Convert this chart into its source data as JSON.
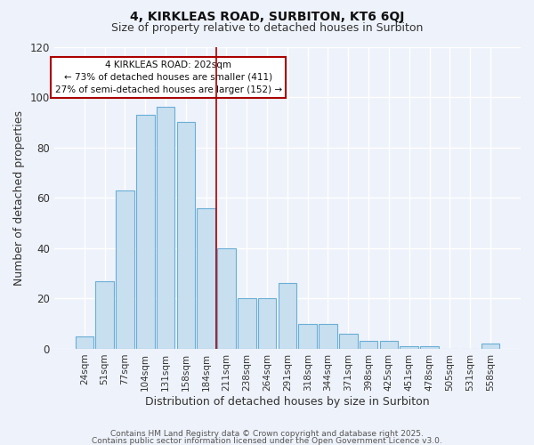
{
  "title_line1": "4, KIRKLEAS ROAD, SURBITON, KT6 6QJ",
  "title_line2": "Size of property relative to detached houses in Surbiton",
  "xlabel": "Distribution of detached houses by size in Surbiton",
  "ylabel": "Number of detached properties",
  "bar_labels": [
    "24sqm",
    "51sqm",
    "77sqm",
    "104sqm",
    "131sqm",
    "158sqm",
    "184sqm",
    "211sqm",
    "238sqm",
    "264sqm",
    "291sqm",
    "318sqm",
    "344sqm",
    "371sqm",
    "398sqm",
    "425sqm",
    "451sqm",
    "478sqm",
    "505sqm",
    "531sqm",
    "558sqm"
  ],
  "bar_values": [
    5,
    27,
    63,
    93,
    96,
    90,
    56,
    40,
    20,
    20,
    26,
    10,
    10,
    6,
    3,
    3,
    1,
    1,
    0,
    0,
    2
  ],
  "bar_color": "#c8dff0",
  "bar_edge_color": "#6aaed6",
  "vline_x_index": 7,
  "vline_color": "#aa0000",
  "ylim": [
    0,
    120
  ],
  "yticks": [
    0,
    20,
    40,
    60,
    80,
    100,
    120
  ],
  "annotation_title": "4 KIRKLEAS ROAD: 202sqm",
  "annotation_line1": "← 73% of detached houses are smaller (411)",
  "annotation_line2": "27% of semi-detached houses are larger (152) →",
  "annotation_box_facecolor": "#ffffff",
  "annotation_box_edgecolor": "#aa0000",
  "footer_line1": "Contains HM Land Registry data © Crown copyright and database right 2025.",
  "footer_line2": "Contains public sector information licensed under the Open Government Licence v3.0.",
  "bg_color": "#eef2fa",
  "grid_color": "#ffffff",
  "title1_fontsize": 10,
  "title2_fontsize": 9,
  "xlabel_fontsize": 9,
  "ylabel_fontsize": 9,
  "tick_fontsize": 7.5,
  "ann_fontsize": 7.5,
  "footer_fontsize": 6.5
}
